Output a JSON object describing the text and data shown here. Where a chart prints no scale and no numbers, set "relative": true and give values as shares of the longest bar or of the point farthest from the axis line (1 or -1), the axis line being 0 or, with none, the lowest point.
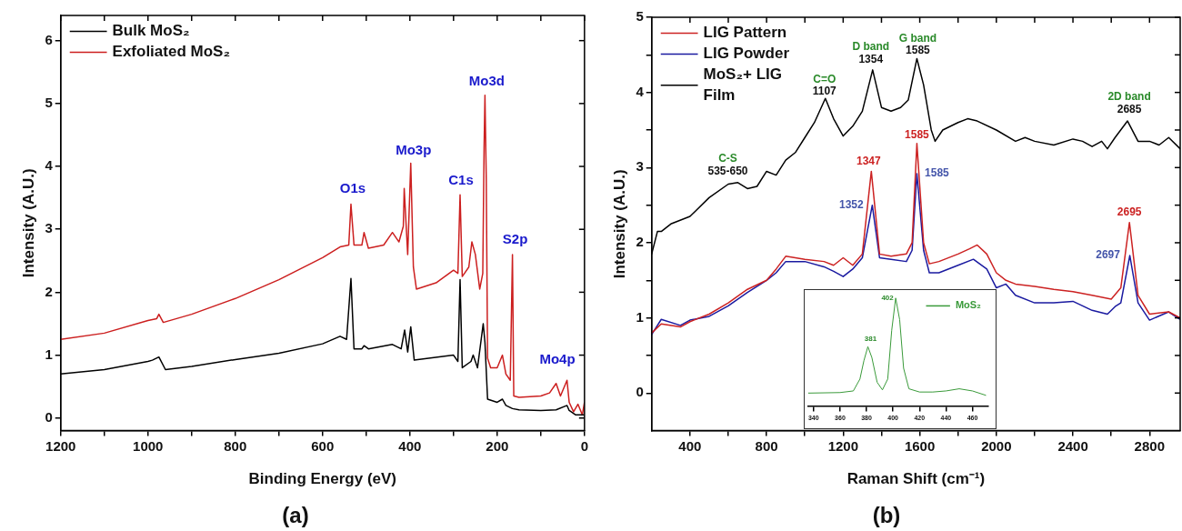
{
  "chart_data": [
    {
      "type": "line",
      "xlabel": "Binding Energy (eV)",
      "ylabel": "Intensity (A.U.)",
      "xlim": [
        1200,
        0
      ],
      "xticks": [
        1200,
        {
          "value": 1100,
          "label": null
        },
        1000,
        {
          "value": 900,
          "label": null
        },
        800,
        {
          "value": 700,
          "label": null
        },
        600,
        {
          "value": 500,
          "label": null
        },
        400,
        {
          "value": 300,
          "label": null
        },
        200,
        {
          "value": 100,
          "label": null
        },
        0
      ],
      "ylim": [
        -0.2,
        6.4
      ],
      "yticks": [
        0,
        1,
        2,
        3,
        4,
        5,
        6
      ],
      "legend": "top left",
      "series": [
        {
          "name": "Bulk MoS₂",
          "color": "#000000",
          "x": [
            1200,
            1100,
            1000,
            990,
            975,
            960,
            900,
            800,
            700,
            600,
            560,
            545,
            535,
            528,
            510,
            505,
            495,
            440,
            420,
            412,
            405,
            398,
            390,
            300,
            290,
            285,
            280,
            260,
            255,
            245,
            232,
            228,
            222,
            200,
            188,
            180,
            165,
            150,
            100,
            65,
            40,
            35,
            20,
            0
          ],
          "values": [
            0.7,
            0.77,
            0.9,
            0.92,
            0.97,
            0.77,
            0.82,
            0.93,
            1.03,
            1.18,
            1.3,
            1.25,
            2.22,
            1.1,
            1.1,
            1.15,
            1.1,
            1.17,
            1.1,
            1.4,
            1.05,
            1.45,
            0.92,
            1.0,
            0.9,
            2.2,
            0.8,
            0.9,
            1.0,
            0.8,
            1.5,
            1.2,
            0.3,
            0.25,
            0.3,
            0.2,
            0.15,
            0.13,
            0.12,
            0.13,
            0.2,
            0.12,
            0.05,
            0.05
          ]
        },
        {
          "name": "Exfoliated MoS₂",
          "color": "#cc1f1f",
          "x": [
            1200,
            1100,
            1000,
            980,
            975,
            965,
            900,
            800,
            700,
            600,
            560,
            540,
            535,
            528,
            510,
            505,
            495,
            460,
            440,
            425,
            415,
            413,
            405,
            398,
            392,
            385,
            340,
            300,
            290,
            285,
            280,
            265,
            258,
            250,
            240,
            233,
            230,
            228,
            225,
            222,
            215,
            200,
            188,
            180,
            170,
            165,
            162,
            150,
            100,
            80,
            65,
            55,
            40,
            35,
            25,
            15,
            5,
            0
          ],
          "values": [
            1.25,
            1.35,
            1.55,
            1.58,
            1.65,
            1.52,
            1.65,
            1.9,
            2.2,
            2.55,
            2.72,
            2.75,
            3.4,
            2.75,
            2.75,
            2.95,
            2.7,
            2.75,
            2.95,
            2.8,
            3.05,
            3.65,
            2.6,
            4.05,
            2.4,
            2.05,
            2.15,
            2.35,
            2.3,
            3.55,
            2.25,
            2.4,
            2.8,
            2.6,
            2.05,
            2.3,
            4.3,
            5.13,
            3.8,
            0.95,
            0.8,
            0.8,
            1.0,
            0.7,
            0.6,
            2.6,
            0.35,
            0.33,
            0.35,
            0.4,
            0.55,
            0.35,
            0.6,
            0.25,
            0.1,
            0.22,
            0.05,
            0.25
          ]
        }
      ],
      "annotations": [
        {
          "text": "O1s",
          "x": 535,
          "y": 3.4
        },
        {
          "text": "Mo3p",
          "x": 398,
          "y": 4.05
        },
        {
          "text": "C1s",
          "x": 285,
          "y": 3.55
        },
        {
          "text": "Mo3d",
          "x": 228,
          "y": 5.13
        },
        {
          "text": "S2p",
          "x": 165,
          "y": 2.6
        },
        {
          "text": "Mo4p",
          "x": 35,
          "y": 0.6
        },
        "(a)"
      ]
    },
    {
      "type": "line",
      "xlabel": "Raman Shift (cm⁻¹)",
      "ylabel": "Intensity (A.U.)",
      "xlim": [
        200,
        2960
      ],
      "xticks": [
        400,
        {
          "value": 600,
          "label": null
        },
        800,
        {
          "value": 1000,
          "label": null
        },
        1200,
        {
          "value": 1400,
          "label": null
        },
        1600,
        {
          "value": 1800,
          "label": null
        },
        2000,
        {
          "value": 2200,
          "label": null
        },
        2400,
        {
          "value": 2600,
          "label": null
        },
        2800
      ],
      "ylim": [
        -0.5,
        5
      ],
      "yticks": [
        0,
        {
          "value": 0.5,
          "label": null
        },
        1,
        {
          "value": 1.5,
          "label": null
        },
        2,
        {
          "value": 2.5,
          "label": null
        },
        3,
        {
          "value": 3.5,
          "label": null
        },
        4,
        {
          "value": 4.5,
          "label": null
        },
        5
      ],
      "legend": "top left",
      "series": [
        {
          "name": "LIG Pattern",
          "color": "#cc2222",
          "x": [
            200,
            250,
            350,
            400,
            500,
            600,
            700,
            800,
            850,
            900,
            1000,
            1100,
            1150,
            1200,
            1250,
            1300,
            1347,
            1390,
            1450,
            1530,
            1560,
            1585,
            1620,
            1650,
            1700,
            1800,
            1860,
            1900,
            1950,
            2000,
            2050,
            2100,
            2200,
            2300,
            2400,
            2500,
            2600,
            2650,
            2695,
            2740,
            2800,
            2900,
            2960
          ],
          "values": [
            0.8,
            0.92,
            0.88,
            0.95,
            1.05,
            1.2,
            1.38,
            1.5,
            1.65,
            1.82,
            1.78,
            1.75,
            1.7,
            1.8,
            1.7,
            1.85,
            2.95,
            1.85,
            1.82,
            1.85,
            2.0,
            3.32,
            2.0,
            1.72,
            1.75,
            1.85,
            1.92,
            1.97,
            1.85,
            1.6,
            1.5,
            1.45,
            1.42,
            1.38,
            1.35,
            1.3,
            1.25,
            1.4,
            2.27,
            1.3,
            1.05,
            1.08,
            1.0
          ]
        },
        {
          "name": "LIG Powder",
          "color": "#1a1aa0",
          "x": [
            200,
            250,
            350,
            400,
            500,
            600,
            700,
            800,
            850,
            900,
            1000,
            1100,
            1150,
            1200,
            1250,
            1300,
            1352,
            1390,
            1450,
            1530,
            1560,
            1585,
            1620,
            1650,
            1700,
            1800,
            1880,
            1950,
            2000,
            2050,
            2100,
            2200,
            2300,
            2400,
            2500,
            2580,
            2620,
            2650,
            2697,
            2740,
            2800,
            2900,
            2960
          ],
          "values": [
            0.78,
            0.98,
            0.9,
            0.97,
            1.02,
            1.16,
            1.34,
            1.5,
            1.6,
            1.75,
            1.75,
            1.68,
            1.62,
            1.55,
            1.65,
            1.8,
            2.5,
            1.8,
            1.78,
            1.75,
            1.9,
            2.92,
            1.9,
            1.6,
            1.6,
            1.7,
            1.78,
            1.65,
            1.4,
            1.45,
            1.3,
            1.2,
            1.2,
            1.22,
            1.1,
            1.05,
            1.15,
            1.2,
            1.83,
            1.2,
            0.97,
            1.08,
            0.98
          ]
        },
        {
          "name": "MoS₂+ LIG Film",
          "color": "#000000",
          "x": [
            200,
            230,
            250,
            300,
            400,
            500,
            600,
            650,
            700,
            750,
            800,
            850,
            900,
            950,
            1000,
            1050,
            1107,
            1150,
            1200,
            1250,
            1300,
            1354,
            1400,
            1450,
            1500,
            1540,
            1585,
            1620,
            1660,
            1680,
            1720,
            1800,
            1850,
            1900,
            2000,
            2100,
            2150,
            2200,
            2300,
            2400,
            2450,
            2500,
            2550,
            2580,
            2620,
            2685,
            2740,
            2800,
            2850,
            2900,
            2960
          ],
          "values": [
            1.85,
            2.15,
            2.15,
            2.25,
            2.35,
            2.6,
            2.78,
            2.8,
            2.72,
            2.75,
            2.95,
            2.9,
            3.1,
            3.2,
            3.4,
            3.6,
            3.92,
            3.65,
            3.42,
            3.55,
            3.75,
            4.3,
            3.8,
            3.75,
            3.8,
            3.9,
            4.45,
            4.1,
            3.5,
            3.35,
            3.5,
            3.6,
            3.65,
            3.62,
            3.5,
            3.35,
            3.4,
            3.35,
            3.3,
            3.38,
            3.35,
            3.28,
            3.35,
            3.25,
            3.4,
            3.62,
            3.35,
            3.35,
            3.3,
            3.4,
            3.25
          ]
        }
      ],
      "annotations": [
        {
          "text": "C-S",
          "x": 650,
          "y": 2.8
        },
        {
          "text": "535-650",
          "x": 650,
          "y": 2.8
        },
        {
          "text": "C=O",
          "x": 1107,
          "y": 3.92
        },
        {
          "text": "1107",
          "x": 1107,
          "y": 3.92
        },
        {
          "text": "D band",
          "x": 1354,
          "y": 4.3
        },
        {
          "text": "1354",
          "x": 1354,
          "y": 4.3
        },
        {
          "text": "G band",
          "x": 1585,
          "y": 4.45
        },
        {
          "text": "1585",
          "x": 1585,
          "y": 4.45
        },
        {
          "text": "2D band",
          "x": 2685,
          "y": 3.62
        },
        {
          "text": "2685",
          "x": 2685,
          "y": 3.62
        },
        {
          "text": "1347",
          "x": 1347,
          "y": 2.95
        },
        {
          "text": "1585",
          "x": 1585,
          "y": 3.32
        },
        {
          "text": "1352",
          "x": 1352,
          "y": 2.5
        },
        {
          "text": "1585",
          "x": 1585,
          "y": 2.92
        },
        {
          "text": "2695",
          "x": 2695,
          "y": 2.27
        },
        {
          "text": "2697",
          "x": 2697,
          "y": 1.83
        },
        "(b)"
      ]
    },
    {
      "type": "line",
      "relative": true,
      "tick_labels": "x",
      "xlim": [
        336,
        472
      ],
      "xticks": [
        340,
        360,
        380,
        400,
        420,
        440,
        460
      ],
      "legend": "top right",
      "series": [
        {
          "name": "MoS₂",
          "color": "#3a9a3a",
          "x": [
            336,
            360,
            370,
            375,
            378,
            381,
            384,
            388,
            392,
            396,
            399,
            402,
            405,
            408,
            412,
            420,
            430,
            440,
            450,
            460,
            470
          ],
          "values": [
            0.12,
            0.125,
            0.14,
            0.25,
            0.42,
            0.55,
            0.45,
            0.22,
            0.15,
            0.25,
            0.7,
            1.0,
            0.8,
            0.35,
            0.16,
            0.13,
            0.13,
            0.14,
            0.16,
            0.14,
            0.1
          ]
        }
      ],
      "annotations": [
        {
          "text": "381",
          "x": 381,
          "y": 0.55
        },
        {
          "text": "402",
          "x": 402,
          "y": 1.0
        }
      ]
    }
  ]
}
